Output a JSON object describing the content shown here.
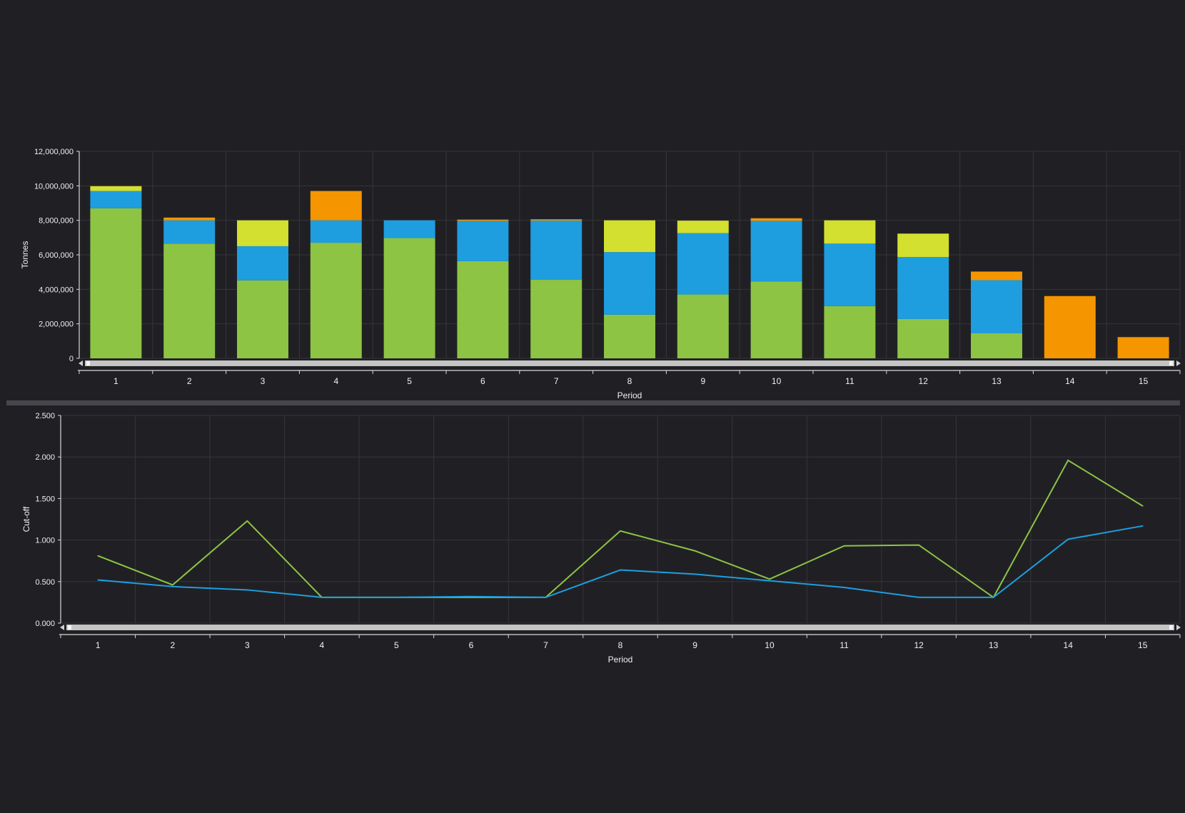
{
  "colors": {
    "background": "#202024",
    "green": "#8DC444",
    "blue": "#1E9EDF",
    "yellow": "#D3E030",
    "orange": "#F59500"
  },
  "chart_data": [
    {
      "type": "bar",
      "stacked": true,
      "ylabel": "Tonnes",
      "xlabel": "Period",
      "ylim": [
        0,
        12000000
      ],
      "yticks": [
        0,
        2000000,
        4000000,
        6000000,
        8000000,
        10000000,
        12000000
      ],
      "ytick_labels": [
        "0",
        "2,000,000",
        "4,000,000",
        "6,000,000",
        "8,000,000",
        "10,000,000",
        "12,000,000"
      ],
      "categories": [
        "1",
        "2",
        "3",
        "4",
        "5",
        "6",
        "7",
        "8",
        "9",
        "10",
        "11",
        "12",
        "13",
        "14",
        "15"
      ],
      "grid": true,
      "series": [
        {
          "color": "#8DC444",
          "values": [
            8700000,
            6650000,
            4520000,
            6700000,
            6970000,
            5630000,
            4550000,
            2530000,
            3700000,
            4460000,
            3030000,
            2280000,
            1450000,
            0,
            0
          ]
        },
        {
          "color": "#1E9EDF",
          "values": [
            1000000,
            1350000,
            1980000,
            1300000,
            1030000,
            2340000,
            3440000,
            3630000,
            3560000,
            3510000,
            3620000,
            3590000,
            3080000,
            0,
            0
          ]
        },
        {
          "color": "#D3E030",
          "values": [
            280000,
            0,
            1500000,
            0,
            0,
            0,
            0,
            1840000,
            720000,
            0,
            1350000,
            1360000,
            0,
            0,
            0
          ]
        },
        {
          "color": "#F59500",
          "values": [
            0,
            160000,
            0,
            1700000,
            0,
            70000,
            70000,
            0,
            0,
            150000,
            0,
            0,
            500000,
            3610000,
            1230000
          ]
        }
      ]
    },
    {
      "type": "line",
      "ylabel": "Cut-off",
      "xlabel": "Period",
      "ylim": [
        0,
        2.5
      ],
      "yticks": [
        0,
        0.5,
        1.0,
        1.5,
        2.0,
        2.5
      ],
      "ytick_labels": [
        "0.000",
        "0.500",
        "1.000",
        "1.500",
        "2.000",
        "2.500"
      ],
      "x": [
        "1",
        "2",
        "3",
        "4",
        "5",
        "6",
        "7",
        "8",
        "9",
        "10",
        "11",
        "12",
        "13",
        "14",
        "15"
      ],
      "grid": true,
      "series": [
        {
          "color": "#8DC444",
          "values": [
            0.81,
            0.46,
            1.23,
            0.31,
            0.31,
            0.31,
            0.31,
            1.11,
            0.87,
            0.53,
            0.93,
            0.94,
            0.31,
            1.96,
            1.41
          ]
        },
        {
          "color": "#1E9EDF",
          "values": [
            0.52,
            0.44,
            0.4,
            0.31,
            0.31,
            0.32,
            0.31,
            0.64,
            0.59,
            0.51,
            0.43,
            0.31,
            0.31,
            1.01,
            1.17
          ]
        }
      ]
    }
  ]
}
